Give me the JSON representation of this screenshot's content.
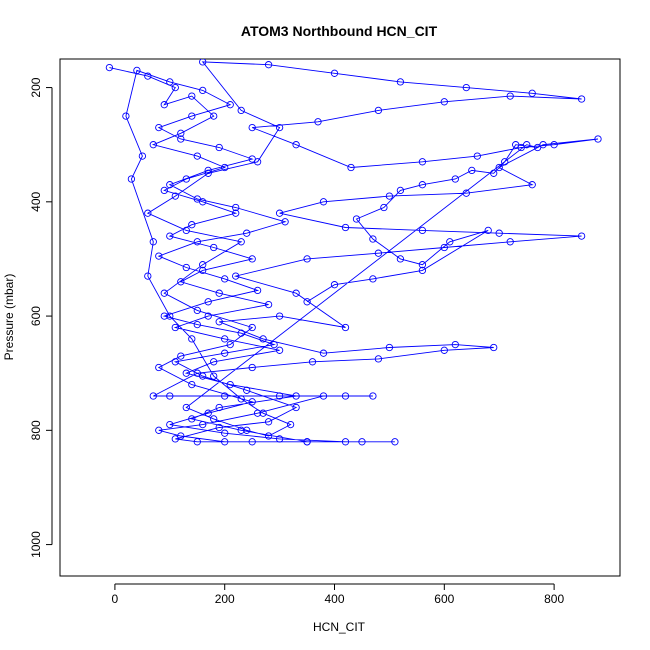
{
  "chart_data": {
    "type": "scatter",
    "title": "ATOM3 Northbound HCN_CIT",
    "xlabel": "HCN_CIT",
    "ylabel": "Pressure (mbar)",
    "xlim": [
      -100,
      920
    ],
    "ylim": [
      1055,
      150
    ],
    "y_reversed": true,
    "x_ticks": [
      0,
      200,
      400,
      600,
      800
    ],
    "y_ticks": [
      200,
      400,
      600,
      800,
      1000
    ],
    "grid": false,
    "legend": "none",
    "marker": "open-circle",
    "connect_points": true,
    "color": "#0000ff",
    "series": [
      {
        "values_xy": [
          [
            -10,
            165
          ],
          [
            60,
            180
          ],
          [
            110,
            200
          ],
          [
            90,
            230
          ],
          [
            140,
            215
          ],
          [
            180,
            250
          ],
          [
            120,
            280
          ],
          [
            70,
            300
          ],
          [
            150,
            320
          ],
          [
            200,
            340
          ],
          [
            130,
            360
          ],
          [
            90,
            380
          ],
          [
            160,
            400
          ],
          [
            220,
            420
          ],
          [
            140,
            440
          ],
          [
            100,
            460
          ],
          [
            180,
            480
          ],
          [
            250,
            500
          ],
          [
            160,
            520
          ],
          [
            120,
            540
          ],
          [
            190,
            560
          ],
          [
            280,
            580
          ],
          [
            170,
            600
          ],
          [
            110,
            620
          ],
          [
            200,
            640
          ],
          [
            300,
            660
          ],
          [
            180,
            680
          ],
          [
            130,
            700
          ],
          [
            210,
            720
          ],
          [
            330,
            740
          ],
          [
            190,
            760
          ],
          [
            140,
            780
          ],
          [
            230,
            800
          ],
          [
            350,
            820
          ],
          [
            200,
            820
          ],
          [
            120,
            810
          ],
          [
            80,
            800
          ],
          [
            160,
            790
          ],
          [
            260,
            770
          ],
          [
            380,
            740
          ],
          [
            470,
            740
          ],
          [
            420,
            740
          ],
          [
            300,
            740
          ],
          [
            200,
            740
          ],
          [
            100,
            740
          ],
          [
            70,
            740
          ],
          [
            150,
            700
          ],
          [
            250,
            690
          ],
          [
            360,
            680
          ],
          [
            480,
            675
          ],
          [
            600,
            660
          ],
          [
            690,
            655
          ],
          [
            620,
            650
          ],
          [
            500,
            655
          ],
          [
            380,
            665
          ],
          [
            270,
            640
          ],
          [
            190,
            610
          ],
          [
            300,
            600
          ],
          [
            420,
            620
          ],
          [
            330,
            560
          ],
          [
            220,
            530
          ],
          [
            350,
            500
          ],
          [
            480,
            490
          ],
          [
            600,
            480
          ],
          [
            720,
            470
          ],
          [
            850,
            460
          ],
          [
            700,
            455
          ],
          [
            560,
            450
          ],
          [
            420,
            445
          ],
          [
            300,
            420
          ],
          [
            380,
            400
          ],
          [
            500,
            390
          ],
          [
            640,
            385
          ],
          [
            760,
            370
          ],
          [
            700,
            340
          ],
          [
            780,
            300
          ],
          [
            880,
            290
          ],
          [
            800,
            300
          ],
          [
            740,
            305
          ],
          [
            660,
            320
          ],
          [
            560,
            330
          ],
          [
            430,
            340
          ],
          [
            330,
            300
          ],
          [
            250,
            270
          ],
          [
            370,
            260
          ],
          [
            480,
            240
          ],
          [
            600,
            225
          ],
          [
            720,
            215
          ],
          [
            850,
            220
          ],
          [
            760,
            210
          ],
          [
            640,
            200
          ],
          [
            520,
            190
          ],
          [
            400,
            175
          ],
          [
            280,
            160
          ],
          [
            160,
            155
          ],
          [
            230,
            240
          ],
          [
            300,
            270
          ],
          [
            260,
            330
          ],
          [
            170,
            350
          ],
          [
            110,
            390
          ],
          [
            60,
            420
          ],
          [
            130,
            450
          ],
          [
            230,
            470
          ],
          [
            160,
            510
          ],
          [
            90,
            560
          ],
          [
            150,
            590
          ],
          [
            250,
            620
          ],
          [
            210,
            650
          ],
          [
            120,
            670
          ],
          [
            80,
            690
          ],
          [
            140,
            720
          ],
          [
            250,
            750
          ],
          [
            170,
            770
          ],
          [
            100,
            790
          ],
          [
            200,
            805
          ],
          [
            300,
            815
          ],
          [
            420,
            820
          ],
          [
            510,
            820
          ],
          [
            450,
            820
          ],
          [
            350,
            820
          ],
          [
            250,
            820
          ],
          [
            150,
            820
          ],
          [
            110,
            815
          ],
          [
            190,
            795
          ],
          [
            280,
            785
          ],
          [
            330,
            760
          ],
          [
            240,
            730
          ],
          [
            160,
            705
          ],
          [
            110,
            680
          ],
          [
            200,
            665
          ],
          [
            290,
            650
          ],
          [
            230,
            630
          ],
          [
            150,
            615
          ],
          [
            90,
            600
          ],
          [
            170,
            575
          ],
          [
            260,
            555
          ],
          [
            200,
            535
          ],
          [
            130,
            515
          ],
          [
            80,
            495
          ],
          [
            150,
            470
          ],
          [
            240,
            455
          ],
          [
            310,
            435
          ],
          [
            220,
            410
          ],
          [
            150,
            395
          ],
          [
            100,
            370
          ],
          [
            170,
            345
          ],
          [
            250,
            325
          ],
          [
            190,
            305
          ],
          [
            120,
            290
          ],
          [
            80,
            270
          ],
          [
            140,
            250
          ],
          [
            210,
            230
          ],
          [
            160,
            205
          ],
          [
            100,
            190
          ],
          [
            40,
            170
          ],
          [
            20,
            250
          ],
          [
            50,
            320
          ],
          [
            30,
            360
          ],
          [
            70,
            470
          ],
          [
            60,
            530
          ],
          [
            100,
            600
          ],
          [
            140,
            640
          ],
          [
            180,
            705
          ],
          [
            230,
            745
          ],
          [
            270,
            770
          ],
          [
            320,
            790
          ],
          [
            280,
            810
          ],
          [
            240,
            800
          ],
          [
            180,
            780
          ],
          [
            130,
            760
          ],
          [
            750,
            300
          ],
          [
            770,
            305
          ],
          [
            730,
            300
          ],
          [
            710,
            330
          ],
          [
            690,
            350
          ],
          [
            650,
            345
          ],
          [
            620,
            360
          ],
          [
            560,
            370
          ],
          [
            520,
            380
          ],
          [
            490,
            410
          ],
          [
            440,
            430
          ],
          [
            470,
            465
          ],
          [
            520,
            500
          ],
          [
            560,
            510
          ],
          [
            610,
            470
          ],
          [
            680,
            450
          ],
          [
            560,
            520
          ],
          [
            470,
            535
          ],
          [
            400,
            545
          ],
          [
            350,
            575
          ]
        ]
      }
    ]
  }
}
